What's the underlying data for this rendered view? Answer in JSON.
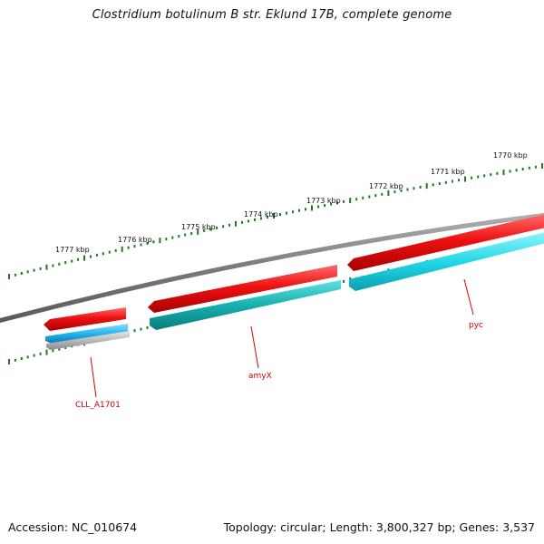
{
  "title": "Clostridium botulinum B str. Eklund 17B, complete genome",
  "footer": {
    "accession": "Accession: NC_010674",
    "summary": "Topology: circular; Length: 3,800,327 bp; Genes: 3,537"
  },
  "colors": {
    "backbone": "#8a8a8a",
    "tick": "#1f7a1f",
    "label_text": "#cc0000",
    "forward_cds": "#ee1111",
    "reverse_cds_teal": "#18b8b8",
    "reverse_cds_cyan": "#22d8e8",
    "reverse_cds_blue": "#22b4ee",
    "gray_feature": "#b8b8b8"
  },
  "scale_labels": [
    "1770 kbp",
    "1771 kbp",
    "1772 kbp",
    "1773 kbp",
    "1774 kbp",
    "1775 kbp",
    "1776 kbp",
    "1777 kbp"
  ],
  "gene_labels": [
    "pyc",
    "amyX",
    "CLL_A1701"
  ]
}
